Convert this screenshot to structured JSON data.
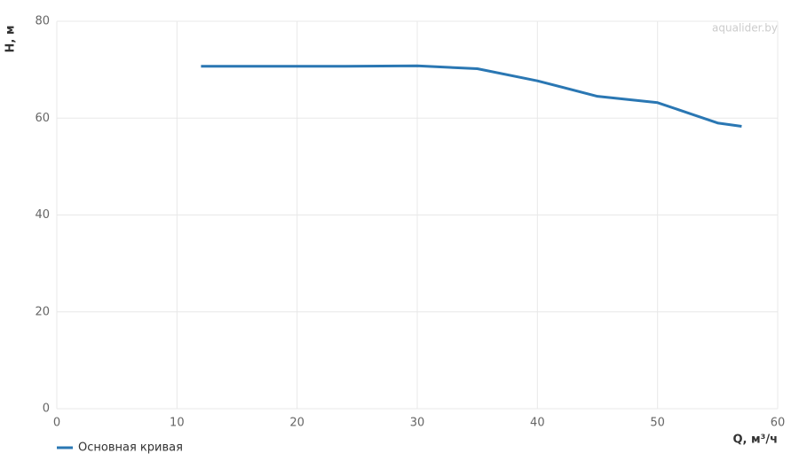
{
  "chart_data": {
    "type": "line",
    "watermark": "aqualider.by",
    "x_label": "Q, м³/ч",
    "y_label": "H, м",
    "x": [
      12,
      24,
      30,
      35,
      40,
      45,
      50,
      55,
      57
    ],
    "series": [
      {
        "name": "Основная кривая",
        "color": "#2a77b3",
        "values": [
          70.7,
          70.7,
          70.8,
          70.2,
          67.7,
          64.5,
          63.2,
          59.0,
          58.3
        ]
      }
    ],
    "xlim": [
      0,
      60
    ],
    "xticks": [
      0,
      10,
      20,
      30,
      40,
      50,
      60
    ],
    "ylim": [
      0,
      80
    ],
    "yticks": [
      0,
      20,
      40,
      60,
      80
    ],
    "grid": true
  }
}
